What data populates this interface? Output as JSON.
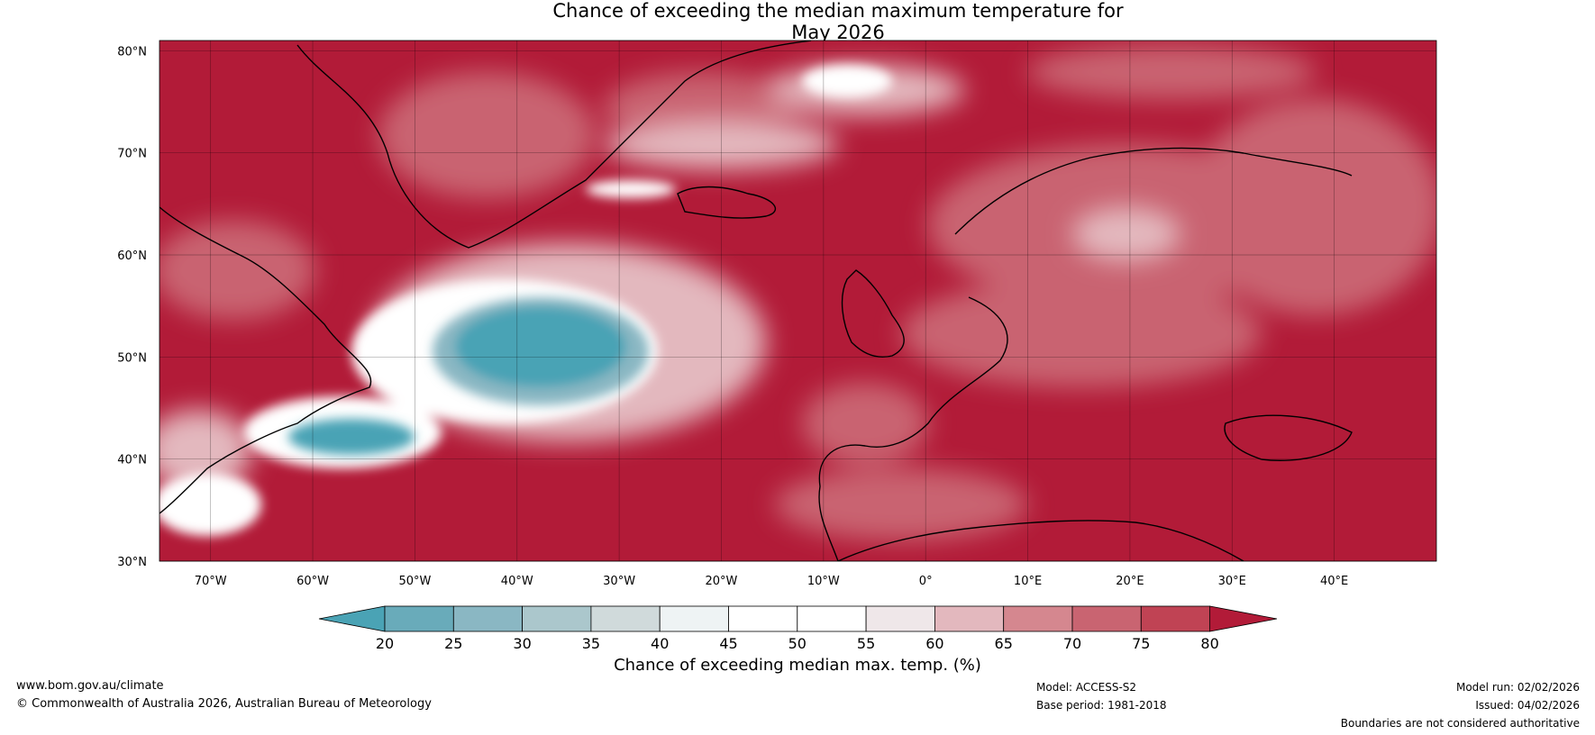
{
  "title": {
    "line1": "Chance of exceeding the median maximum temperature for",
    "line2": "May 2026"
  },
  "axes": {
    "lat_labels": [
      "80°N",
      "70°N",
      "60°N",
      "50°N",
      "40°N",
      "30°N"
    ],
    "lon_labels": [
      "70°W",
      "60°W",
      "50°W",
      "40°W",
      "30°W",
      "20°W",
      "10°W",
      "0°",
      "10°E",
      "20°E",
      "30°E",
      "40°E"
    ],
    "lat_values": [
      80,
      70,
      60,
      50,
      40,
      30
    ],
    "lon_values": [
      -70,
      -60,
      -50,
      -40,
      -30,
      -20,
      -10,
      0,
      10,
      20,
      30,
      40
    ],
    "lon_range": [
      -75,
      50
    ],
    "lat_range": [
      30,
      81
    ]
  },
  "colorbar": {
    "ticks": [
      "20",
      "25",
      "30",
      "35",
      "40",
      "45",
      "50",
      "55",
      "60",
      "65",
      "70",
      "75",
      "80"
    ],
    "colors": [
      "#4aa3b5",
      "#69abba",
      "#8ab7c3",
      "#abc7cc",
      "#d0dadb",
      "#eef3f4",
      "#ffffff",
      "#ffffff",
      "#efe7e9",
      "#e3b8be",
      "#d5878f",
      "#c96471",
      "#c04354",
      "#b21b38"
    ],
    "label": "Chance of exceeding median max. temp. (%)"
  },
  "footer": {
    "website": "www.bom.gov.au/climate",
    "copyright": "© Commonwealth of Australia 2026, Australian Bureau of Meteorology",
    "model": "Model: ACCESS-S2",
    "base_period": "Base period: 1981-2018",
    "model_run": "Model run: 02/02/2026",
    "issued": "Issued: 04/02/2026",
    "boundaries": "Boundaries are not considered authoritative"
  }
}
